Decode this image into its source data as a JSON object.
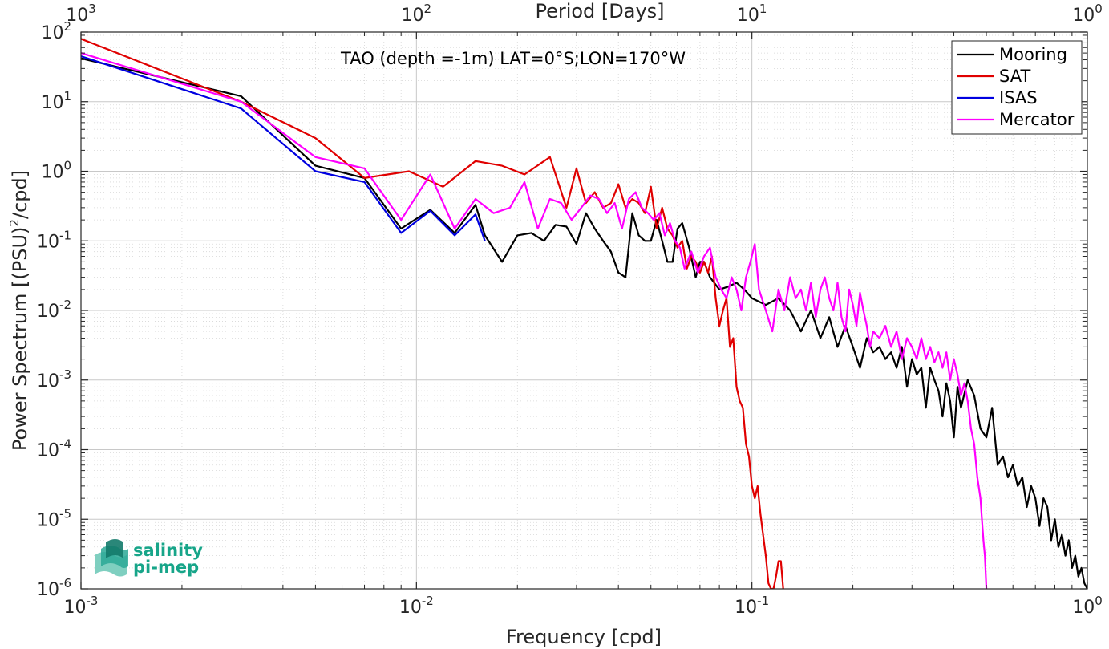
{
  "chart_data": {
    "type": "line",
    "title": "TAO (depth =-1m) LAT=0°S;LON=170°W",
    "xlabel": "Frequency [cpd]",
    "ylabel": "Power Spectrum [(PSU)²/cpd]",
    "ylabel_parts": {
      "pre": "Power Spectrum [(PSU)",
      "sup": "2",
      "post": "/cpd]"
    },
    "top_xlabel": "Period [Days]",
    "x_scale": "log",
    "y_scale": "log",
    "xlim": [
      0.001,
      1
    ],
    "ylim": [
      1e-06,
      100
    ],
    "grid": true,
    "legend_position": "top-right",
    "x_ticks": [
      {
        "v": 0.001,
        "base": "10",
        "exp": "-3"
      },
      {
        "v": 0.01,
        "base": "10",
        "exp": "-2"
      },
      {
        "v": 0.1,
        "base": "10",
        "exp": "-1"
      },
      {
        "v": 1,
        "base": "10",
        "exp": "0"
      }
    ],
    "top_ticks": [
      {
        "v": 0.001,
        "base": "10",
        "exp": "3"
      },
      {
        "v": 0.01,
        "base": "10",
        "exp": "2"
      },
      {
        "v": 0.1,
        "base": "10",
        "exp": "1"
      },
      {
        "v": 1,
        "base": "10",
        "exp": "0"
      }
    ],
    "y_ticks": [
      {
        "v": 1e-06,
        "base": "10",
        "exp": "-6"
      },
      {
        "v": 1e-05,
        "base": "10",
        "exp": "-5"
      },
      {
        "v": 0.0001,
        "base": "10",
        "exp": "-4"
      },
      {
        "v": 0.001,
        "base": "10",
        "exp": "-3"
      },
      {
        "v": 0.01,
        "base": "10",
        "exp": "-2"
      },
      {
        "v": 0.1,
        "base": "10",
        "exp": "-1"
      },
      {
        "v": 1,
        "base": "10",
        "exp": "0"
      },
      {
        "v": 10,
        "base": "10",
        "exp": "1"
      },
      {
        "v": 100,
        "base": "10",
        "exp": "2"
      }
    ],
    "series": [
      {
        "name": "Mooring",
        "color": "#000000",
        "points": [
          [
            0.001,
            42
          ],
          [
            0.003,
            12
          ],
          [
            0.005,
            1.2
          ],
          [
            0.007,
            0.8
          ],
          [
            0.009,
            0.15
          ],
          [
            0.011,
            0.28
          ],
          [
            0.013,
            0.13
          ],
          [
            0.015,
            0.33
          ],
          [
            0.016,
            0.12
          ],
          [
            0.018,
            0.05
          ],
          [
            0.02,
            0.12
          ],
          [
            0.022,
            0.13
          ],
          [
            0.024,
            0.1
          ],
          [
            0.026,
            0.17
          ],
          [
            0.028,
            0.16
          ],
          [
            0.03,
            0.09
          ],
          [
            0.032,
            0.25
          ],
          [
            0.034,
            0.15
          ],
          [
            0.036,
            0.1
          ],
          [
            0.038,
            0.07
          ],
          [
            0.04,
            0.035
          ],
          [
            0.042,
            0.03
          ],
          [
            0.044,
            0.25
          ],
          [
            0.046,
            0.12
          ],
          [
            0.048,
            0.1
          ],
          [
            0.05,
            0.1
          ],
          [
            0.052,
            0.2
          ],
          [
            0.054,
            0.1
          ],
          [
            0.056,
            0.05
          ],
          [
            0.058,
            0.05
          ],
          [
            0.06,
            0.15
          ],
          [
            0.062,
            0.18
          ],
          [
            0.065,
            0.08
          ],
          [
            0.068,
            0.03
          ],
          [
            0.07,
            0.05
          ],
          [
            0.072,
            0.05
          ],
          [
            0.075,
            0.03
          ],
          [
            0.08,
            0.02
          ],
          [
            0.085,
            0.022
          ],
          [
            0.09,
            0.025
          ],
          [
            0.095,
            0.02
          ],
          [
            0.1,
            0.015
          ],
          [
            0.11,
            0.012
          ],
          [
            0.12,
            0.015
          ],
          [
            0.13,
            0.01
          ],
          [
            0.14,
            0.005
          ],
          [
            0.15,
            0.01
          ],
          [
            0.16,
            0.004
          ],
          [
            0.17,
            0.008
          ],
          [
            0.18,
            0.003
          ],
          [
            0.19,
            0.006
          ],
          [
            0.2,
            0.003
          ],
          [
            0.21,
            0.0015
          ],
          [
            0.22,
            0.004
          ],
          [
            0.23,
            0.0025
          ],
          [
            0.24,
            0.003
          ],
          [
            0.25,
            0.002
          ],
          [
            0.26,
            0.0025
          ],
          [
            0.27,
            0.0015
          ],
          [
            0.28,
            0.003
          ],
          [
            0.29,
            0.0008
          ],
          [
            0.3,
            0.002
          ],
          [
            0.31,
            0.0012
          ],
          [
            0.32,
            0.0015
          ],
          [
            0.33,
            0.0004
          ],
          [
            0.34,
            0.0015
          ],
          [
            0.35,
            0.001
          ],
          [
            0.36,
            0.0007
          ],
          [
            0.37,
            0.0003
          ],
          [
            0.38,
            0.0009
          ],
          [
            0.39,
            0.0005
          ],
          [
            0.4,
            0.00015
          ],
          [
            0.41,
            0.0008
          ],
          [
            0.42,
            0.0004
          ],
          [
            0.44,
            0.001
          ],
          [
            0.46,
            0.0006
          ],
          [
            0.48,
            0.0002
          ],
          [
            0.5,
            0.00015
          ],
          [
            0.52,
            0.0004
          ],
          [
            0.54,
            6e-05
          ],
          [
            0.56,
            8e-05
          ],
          [
            0.58,
            4e-05
          ],
          [
            0.6,
            6e-05
          ],
          [
            0.62,
            3e-05
          ],
          [
            0.64,
            4e-05
          ],
          [
            0.66,
            1.5e-05
          ],
          [
            0.68,
            3e-05
          ],
          [
            0.7,
            2e-05
          ],
          [
            0.72,
            8e-06
          ],
          [
            0.74,
            2e-05
          ],
          [
            0.76,
            1.5e-05
          ],
          [
            0.78,
            5e-06
          ],
          [
            0.8,
            1e-05
          ],
          [
            0.82,
            4e-06
          ],
          [
            0.84,
            6e-06
          ],
          [
            0.86,
            3e-06
          ],
          [
            0.88,
            5e-06
          ],
          [
            0.9,
            2e-06
          ],
          [
            0.92,
            3e-06
          ],
          [
            0.94,
            1.5e-06
          ],
          [
            0.96,
            2e-06
          ],
          [
            0.98,
            1.2e-06
          ],
          [
            1.0,
            1e-06
          ]
        ]
      },
      {
        "name": "SAT",
        "color": "#e00000",
        "points": [
          [
            0.001,
            80
          ],
          [
            0.003,
            10
          ],
          [
            0.005,
            3
          ],
          [
            0.007,
            0.8
          ],
          [
            0.0095,
            1.0
          ],
          [
            0.012,
            0.6
          ],
          [
            0.015,
            1.4
          ],
          [
            0.018,
            1.2
          ],
          [
            0.021,
            0.9
          ],
          [
            0.025,
            1.6
          ],
          [
            0.028,
            0.3
          ],
          [
            0.03,
            1.1
          ],
          [
            0.032,
            0.35
          ],
          [
            0.034,
            0.5
          ],
          [
            0.036,
            0.3
          ],
          [
            0.038,
            0.35
          ],
          [
            0.04,
            0.65
          ],
          [
            0.042,
            0.3
          ],
          [
            0.044,
            0.4
          ],
          [
            0.046,
            0.35
          ],
          [
            0.048,
            0.25
          ],
          [
            0.05,
            0.6
          ],
          [
            0.052,
            0.15
          ],
          [
            0.054,
            0.3
          ],
          [
            0.056,
            0.15
          ],
          [
            0.058,
            0.12
          ],
          [
            0.06,
            0.08
          ],
          [
            0.062,
            0.1
          ],
          [
            0.064,
            0.04
          ],
          [
            0.066,
            0.06
          ],
          [
            0.068,
            0.05
          ],
          [
            0.07,
            0.035
          ],
          [
            0.072,
            0.05
          ],
          [
            0.074,
            0.035
          ],
          [
            0.076,
            0.06
          ],
          [
            0.078,
            0.015
          ],
          [
            0.08,
            0.006
          ],
          [
            0.082,
            0.01
          ],
          [
            0.084,
            0.015
          ],
          [
            0.086,
            0.003
          ],
          [
            0.088,
            0.004
          ],
          [
            0.09,
            0.0008
          ],
          [
            0.092,
            0.0005
          ],
          [
            0.094,
            0.0004
          ],
          [
            0.096,
            0.00012
          ],
          [
            0.098,
            8e-05
          ],
          [
            0.1,
            3e-05
          ],
          [
            0.102,
            2e-05
          ],
          [
            0.104,
            3e-05
          ],
          [
            0.106,
            1.2e-05
          ],
          [
            0.108,
            6e-06
          ],
          [
            0.11,
            3e-06
          ],
          [
            0.112,
            1.2e-06
          ],
          [
            0.114,
            1e-06
          ],
          [
            0.116,
            1e-06
          ],
          [
            0.118,
            1.5e-06
          ],
          [
            0.12,
            2.5e-06
          ],
          [
            0.122,
            2.5e-06
          ],
          [
            0.124,
            1e-06
          ]
        ]
      },
      {
        "name": "ISAS",
        "color": "#0000e0",
        "points": [
          [
            0.001,
            45
          ],
          [
            0.003,
            8
          ],
          [
            0.005,
            1.0
          ],
          [
            0.007,
            0.7
          ],
          [
            0.009,
            0.13
          ],
          [
            0.011,
            0.27
          ],
          [
            0.013,
            0.12
          ],
          [
            0.015,
            0.24
          ],
          [
            0.016,
            0.1
          ]
        ]
      },
      {
        "name": "Mercator",
        "color": "#ff00ff",
        "points": [
          [
            0.001,
            50
          ],
          [
            0.003,
            10
          ],
          [
            0.005,
            1.6
          ],
          [
            0.007,
            1.1
          ],
          [
            0.009,
            0.2
          ],
          [
            0.011,
            0.9
          ],
          [
            0.013,
            0.15
          ],
          [
            0.015,
            0.4
          ],
          [
            0.017,
            0.25
          ],
          [
            0.019,
            0.3
          ],
          [
            0.021,
            0.7
          ],
          [
            0.023,
            0.15
          ],
          [
            0.025,
            0.4
          ],
          [
            0.027,
            0.35
          ],
          [
            0.029,
            0.2
          ],
          [
            0.031,
            0.3
          ],
          [
            0.033,
            0.45
          ],
          [
            0.035,
            0.4
          ],
          [
            0.037,
            0.25
          ],
          [
            0.039,
            0.35
          ],
          [
            0.041,
            0.15
          ],
          [
            0.043,
            0.4
          ],
          [
            0.045,
            0.5
          ],
          [
            0.047,
            0.3
          ],
          [
            0.049,
            0.25
          ],
          [
            0.051,
            0.2
          ],
          [
            0.053,
            0.25
          ],
          [
            0.055,
            0.12
          ],
          [
            0.057,
            0.18
          ],
          [
            0.059,
            0.1
          ],
          [
            0.061,
            0.08
          ],
          [
            0.063,
            0.04
          ],
          [
            0.066,
            0.07
          ],
          [
            0.069,
            0.035
          ],
          [
            0.072,
            0.06
          ],
          [
            0.075,
            0.08
          ],
          [
            0.078,
            0.03
          ],
          [
            0.081,
            0.02
          ],
          [
            0.084,
            0.015
          ],
          [
            0.087,
            0.03
          ],
          [
            0.09,
            0.02
          ],
          [
            0.093,
            0.01
          ],
          [
            0.096,
            0.03
          ],
          [
            0.099,
            0.05
          ],
          [
            0.102,
            0.09
          ],
          [
            0.105,
            0.02
          ],
          [
            0.11,
            0.01
          ],
          [
            0.115,
            0.005
          ],
          [
            0.12,
            0.02
          ],
          [
            0.125,
            0.01
          ],
          [
            0.13,
            0.03
          ],
          [
            0.135,
            0.015
          ],
          [
            0.14,
            0.02
          ],
          [
            0.145,
            0.01
          ],
          [
            0.15,
            0.025
          ],
          [
            0.155,
            0.008
          ],
          [
            0.16,
            0.02
          ],
          [
            0.165,
            0.03
          ],
          [
            0.17,
            0.015
          ],
          [
            0.175,
            0.01
          ],
          [
            0.18,
            0.025
          ],
          [
            0.185,
            0.008
          ],
          [
            0.19,
            0.005
          ],
          [
            0.195,
            0.02
          ],
          [
            0.2,
            0.012
          ],
          [
            0.205,
            0.006
          ],
          [
            0.21,
            0.018
          ],
          [
            0.215,
            0.01
          ],
          [
            0.22,
            0.006
          ],
          [
            0.225,
            0.003
          ],
          [
            0.23,
            0.005
          ],
          [
            0.24,
            0.004
          ],
          [
            0.25,
            0.006
          ],
          [
            0.26,
            0.003
          ],
          [
            0.27,
            0.005
          ],
          [
            0.28,
            0.002
          ],
          [
            0.29,
            0.004
          ],
          [
            0.3,
            0.003
          ],
          [
            0.31,
            0.002
          ],
          [
            0.32,
            0.004
          ],
          [
            0.33,
            0.002
          ],
          [
            0.34,
            0.003
          ],
          [
            0.35,
            0.0018
          ],
          [
            0.36,
            0.0025
          ],
          [
            0.37,
            0.0015
          ],
          [
            0.38,
            0.0025
          ],
          [
            0.39,
            0.001
          ],
          [
            0.4,
            0.002
          ],
          [
            0.41,
            0.0012
          ],
          [
            0.42,
            0.0006
          ],
          [
            0.43,
            0.0009
          ],
          [
            0.44,
            0.0005
          ],
          [
            0.45,
            0.0002
          ],
          [
            0.46,
            0.00012
          ],
          [
            0.47,
            4e-05
          ],
          [
            0.48,
            2e-05
          ],
          [
            0.485,
            1e-05
          ],
          [
            0.49,
            5e-06
          ],
          [
            0.495,
            3e-06
          ],
          [
            0.5,
            1e-06
          ]
        ]
      }
    ]
  },
  "logo": {
    "line1": "salinity",
    "line2": "pi-mep"
  }
}
